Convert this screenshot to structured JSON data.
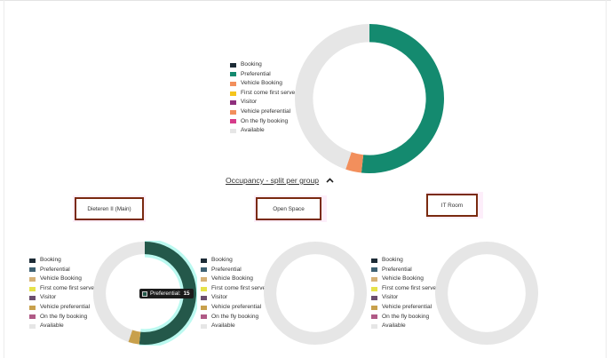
{
  "top_chart": {
    "legend": [
      {
        "label": "Booking",
        "color": "#1d2b36"
      },
      {
        "label": "Preferential",
        "color": "#148a6f"
      },
      {
        "label": "Vehicle Booking",
        "color": "#f28f5c"
      },
      {
        "label": "First come first serve",
        "color": "#f5c51c"
      },
      {
        "label": "Visitor",
        "color": "#8e2f7d"
      },
      {
        "label": "Vehicle preferential",
        "color": "#f28f5c"
      },
      {
        "label": "On the fly booking",
        "color": "#d63b8a"
      },
      {
        "label": "Available",
        "color": "#e6e6e6"
      }
    ]
  },
  "occupancy": {
    "toggle_label": "Occupancy - split per group",
    "chevron_icon": "chevron-up-icon"
  },
  "groups": [
    {
      "name": "Dieteren II (Main)"
    },
    {
      "name": "Open Space"
    },
    {
      "name": "IT Room"
    }
  ],
  "group_legend": [
    {
      "label": "Booking",
      "color": "#1d2b36"
    },
    {
      "label": "Preferential",
      "color": "#3e6173"
    },
    {
      "label": "Vehicle Booking",
      "color": "#d6b277"
    },
    {
      "label": "First come first serve",
      "color": "#e6e24a"
    },
    {
      "label": "Visitor",
      "color": "#6b4e6e"
    },
    {
      "label": "Vehicle preferential",
      "color": "#c8a04c"
    },
    {
      "label": "On the fly booking",
      "color": "#b05a86"
    },
    {
      "label": "Available",
      "color": "#e6e6e6"
    }
  ],
  "tooltip": {
    "label": "Preferential:",
    "value": "15"
  },
  "chart_data": [
    {
      "type": "pie",
      "categories": [
        "Booking",
        "Preferential",
        "Vehicle Booking",
        "First come first serve",
        "Visitor",
        "Vehicle preferential",
        "On the fly booking",
        "Available"
      ],
      "values": [
        0,
        15,
        0,
        0,
        0,
        1,
        0,
        13
      ],
      "colors": [
        "#1d2b36",
        "#148a6f",
        "#f28f5c",
        "#f5c51c",
        "#8e2f7d",
        "#f28f5c",
        "#d63b8a",
        "#e6e6e6"
      ]
    },
    {
      "type": "pie",
      "categories": [
        "Booking",
        "Preferential",
        "Vehicle Booking",
        "First come first serve",
        "Visitor",
        "Vehicle preferential",
        "On the fly booking",
        "Available"
      ],
      "values": [
        0,
        15,
        0,
        0,
        0,
        1,
        0,
        13
      ],
      "colors": [
        "#1d2b36",
        "#24584a",
        "#d6b277",
        "#e6e24a",
        "#6b4e6e",
        "#c8a04c",
        "#b05a86",
        "#e6e6e6"
      ]
    },
    {
      "type": "pie",
      "categories": [
        "Booking",
        "Preferential",
        "Vehicle Booking",
        "First come first serve",
        "Visitor",
        "Vehicle preferential",
        "On the fly booking",
        "Available"
      ],
      "values": [
        0,
        0,
        0,
        0,
        0,
        0,
        0,
        1
      ],
      "colors": [
        "#1d2b36",
        "#3e6173",
        "#d6b277",
        "#e6e24a",
        "#6b4e6e",
        "#c8a04c",
        "#b05a86",
        "#e6e6e6"
      ]
    },
    {
      "type": "pie",
      "categories": [
        "Booking",
        "Preferential",
        "Vehicle Booking",
        "First come first serve",
        "Visitor",
        "Vehicle preferential",
        "On the fly booking",
        "Available"
      ],
      "values": [
        0,
        0,
        0,
        0,
        0,
        0,
        0,
        1
      ],
      "colors": [
        "#1d2b36",
        "#3e6173",
        "#d6b277",
        "#e6e24a",
        "#6b4e6e",
        "#c8a04c",
        "#b05a86",
        "#e6e6e6"
      ]
    }
  ]
}
